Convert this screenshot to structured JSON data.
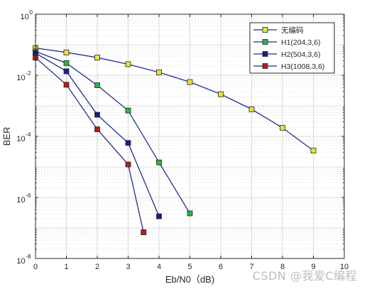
{
  "chart_data": {
    "type": "line",
    "xlabel": "Eb/N0（dB)",
    "ylabel": "BER",
    "xlim": [
      0,
      10
    ],
    "ylim": [
      1e-08,
      1
    ],
    "yscale": "log",
    "x_ticks": [
      "0",
      "1",
      "2",
      "3",
      "4",
      "5",
      "6",
      "7",
      "8",
      "9",
      "10"
    ],
    "y_ticks": [
      {
        "base": "10",
        "exp": "0"
      },
      {
        "base": "10",
        "exp": "-2"
      },
      {
        "base": "10",
        "exp": "-4"
      },
      {
        "base": "10",
        "exp": "-6"
      },
      {
        "base": "10",
        "exp": "-8"
      }
    ],
    "grid": true,
    "legend_position": "top-right",
    "line_color": "#1f2f8f",
    "series": [
      {
        "name": "无编码",
        "marker_color": "#e8e044",
        "x": [
          0,
          1,
          2,
          3,
          4,
          5,
          6,
          7,
          8,
          9
        ],
        "y": [
          0.078,
          0.056,
          0.038,
          0.023,
          0.0125,
          0.006,
          0.0024,
          0.00077,
          0.00019,
          3.4e-05
        ]
      },
      {
        "name": "H1(204,3,6)",
        "marker_color": "#2db34a",
        "x": [
          0,
          1,
          2,
          3,
          4,
          5
        ],
        "y": [
          0.06,
          0.025,
          0.0047,
          0.0007,
          1.4e-05,
          3e-07
        ]
      },
      {
        "name": "H2(504,3,6)",
        "marker_color": "#1c1c8c",
        "x": [
          0,
          1,
          2,
          3,
          4
        ],
        "y": [
          0.053,
          0.0135,
          0.00051,
          6.1e-05,
          2.4e-07
        ]
      },
      {
        "name": "H3(1008,3,6)",
        "marker_color": "#b31c1c",
        "x": [
          0,
          1,
          2,
          3,
          3.5
        ],
        "y": [
          0.038,
          0.0049,
          0.00017,
          1.2e-05,
          7.2e-08
        ]
      }
    ]
  },
  "watermark": "CSDN @我爱C编程"
}
